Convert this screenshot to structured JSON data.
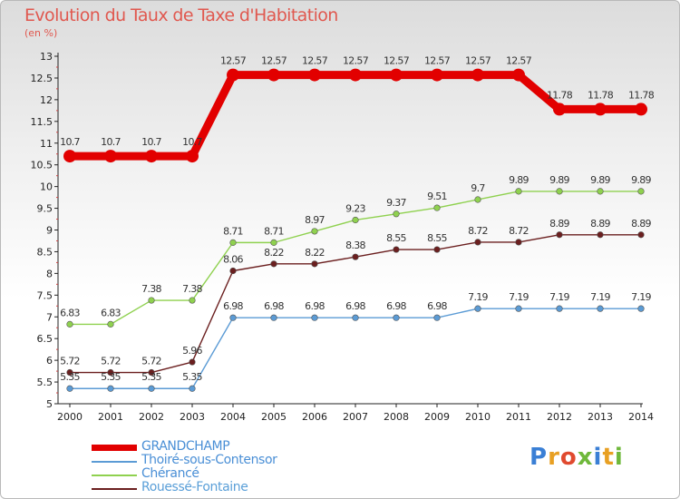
{
  "title": "Evolution du Taux de Taxe d'Habitation",
  "unit": "(en %)",
  "logo": {
    "text": "Proxiti",
    "colors": [
      "#3a7fd5",
      "#e8a023",
      "#e04a2f",
      "#6fb83b",
      "#3a7fd5",
      "#e8a023",
      "#6fb83b"
    ]
  },
  "chart_data": {
    "type": "line",
    "title": "Evolution du Taux de Taxe d'Habitation",
    "ylabel": "(en %)",
    "xlabel": "",
    "x": [
      "2000",
      "2001",
      "2002",
      "2003",
      "2004",
      "2005",
      "2006",
      "2007",
      "2008",
      "2009",
      "2010",
      "2011",
      "2012",
      "2013",
      "2014"
    ],
    "ylim": [
      5,
      13
    ],
    "yticks": [
      "5",
      "5.5",
      "6",
      "6.5",
      "7",
      "7.5",
      "8",
      "8.5",
      "9",
      "9.5",
      "10",
      "10.5",
      "11",
      "11.5",
      "12",
      "12.5",
      "13"
    ],
    "grid": false,
    "legend_position": "bottom-left",
    "series": [
      {
        "name": "GRANDCHAMP",
        "color": "#e20000",
        "values": [
          10.7,
          10.7,
          10.7,
          10.7,
          12.57,
          12.57,
          12.57,
          12.57,
          12.57,
          12.57,
          12.57,
          12.57,
          11.78,
          11.78,
          11.78
        ],
        "labels": [
          "10.7",
          "10.7",
          "10.7",
          "10.7",
          "12.57",
          "12.57",
          "12.57",
          "12.57",
          "12.57",
          "12.57",
          "12.57",
          "12.57",
          "11.78",
          "11.78",
          "11.78"
        ]
      },
      {
        "name": "Thoiré-sous-Contensor",
        "color": "#5b9bd5",
        "values": [
          5.35,
          5.35,
          5.35,
          5.35,
          6.98,
          6.98,
          6.98,
          6.98,
          6.98,
          6.98,
          7.19,
          7.19,
          7.19,
          7.19,
          7.19
        ],
        "labels": [
          "5.35",
          "5.35",
          "5.35",
          "5.35",
          "6.98",
          "6.98",
          "6.98",
          "6.98",
          "6.98",
          "6.98",
          "7.19",
          "7.19",
          "7.19",
          "7.19",
          "7.19"
        ]
      },
      {
        "name": "Chérancé",
        "color": "#8fd14f",
        "values": [
          6.83,
          6.83,
          7.38,
          7.38,
          8.71,
          8.71,
          8.97,
          9.23,
          9.37,
          9.51,
          9.7,
          9.89,
          9.89,
          9.89,
          9.89
        ],
        "labels": [
          "6.83",
          "6.83",
          "7.38",
          "7.38",
          "8.71",
          "8.71",
          "8.97",
          "9.23",
          "9.37",
          "9.51",
          "9.7",
          "9.89",
          "9.89",
          "9.89",
          "9.89"
        ]
      },
      {
        "name": "Rouessé-Fontaine",
        "color": "#6b1f1f",
        "values": [
          5.72,
          5.72,
          5.72,
          5.96,
          8.06,
          8.22,
          8.22,
          8.38,
          8.55,
          8.55,
          8.72,
          8.72,
          8.89,
          8.89,
          8.89
        ],
        "labels": [
          "5.72",
          "5.72",
          "5.72",
          "5.96",
          "8.06",
          "8.22",
          "8.22",
          "8.38",
          "8.55",
          "8.55",
          "8.72",
          "8.72",
          "8.89",
          "8.89",
          "8.89"
        ]
      }
    ]
  }
}
